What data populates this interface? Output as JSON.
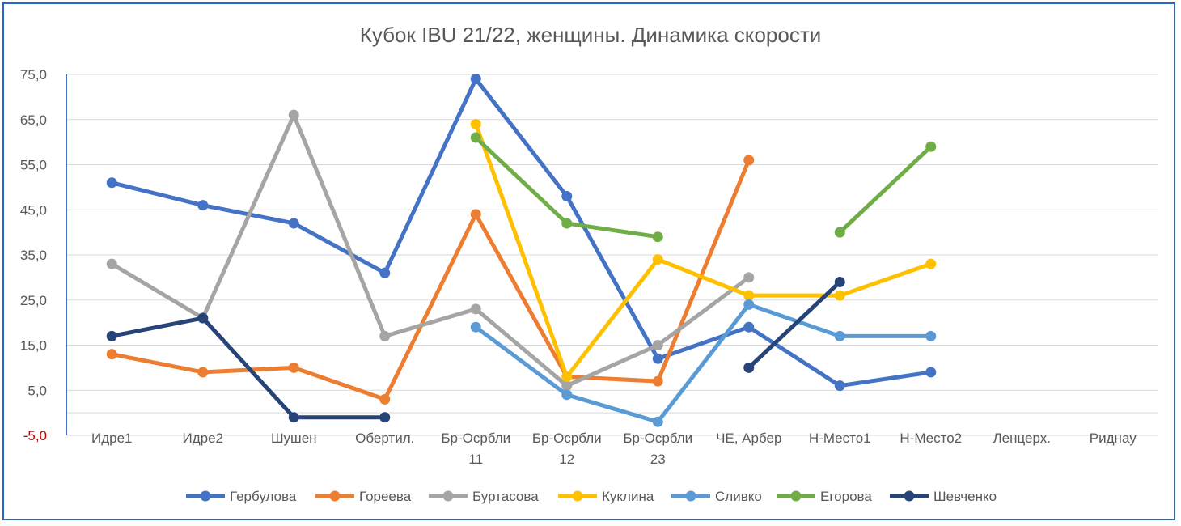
{
  "chart_data": {
    "type": "line",
    "title": "Кубок IBU 21/22, женщины. Динамика скорости",
    "xlabel": "",
    "ylabel": "",
    "ylim": [
      -5,
      75
    ],
    "yticks": [
      "75,0",
      "65,0",
      "55,0",
      "45,0",
      "35,0",
      "25,0",
      "15,0",
      "5,0",
      "-5,0"
    ],
    "grid": true,
    "legend_position": "bottom",
    "categories": [
      [
        "Идре1"
      ],
      [
        "Идре2"
      ],
      [
        "Шушен"
      ],
      [
        "Обертил."
      ],
      [
        "Бр-Осрбли",
        "11"
      ],
      [
        "Бр-Осрбли",
        "12"
      ],
      [
        "Бр-Осрбли",
        "23"
      ],
      [
        "ЧЕ, Арбер"
      ],
      [
        "Н-Место1"
      ],
      [
        "Н-Место2"
      ],
      [
        "Ленцерх."
      ],
      [
        "Риднау"
      ]
    ],
    "series": [
      {
        "name": "Гербулова",
        "color": "#4472c4",
        "values": [
          51,
          46,
          42,
          31,
          74,
          48,
          12,
          19,
          6,
          9,
          null,
          null
        ]
      },
      {
        "name": "Гореева",
        "color": "#ed7d31",
        "values": [
          13,
          9,
          10,
          3,
          44,
          8,
          7,
          56,
          null,
          null,
          null,
          null
        ]
      },
      {
        "name": "Буртасова",
        "color": "#a5a5a5",
        "values": [
          33,
          21,
          66,
          17,
          23,
          6,
          15,
          30,
          null,
          null,
          null,
          null
        ]
      },
      {
        "name": "Куклина",
        "color": "#ffc000",
        "values": [
          null,
          null,
          null,
          null,
          64,
          8,
          34,
          26,
          26,
          33,
          null,
          null
        ]
      },
      {
        "name": "Сливко",
        "color": "#5b9bd5",
        "values": [
          null,
          null,
          null,
          null,
          19,
          4,
          -2,
          24,
          17,
          17,
          null,
          null
        ]
      },
      {
        "name": "Егорова",
        "color": "#70ad47",
        "values": [
          null,
          null,
          null,
          null,
          61,
          42,
          39,
          null,
          40,
          59,
          null,
          null
        ]
      },
      {
        "name": "Шевченко",
        "color": "#264478",
        "values": [
          17,
          21,
          -1,
          -1,
          null,
          null,
          null,
          10,
          29,
          null,
          null,
          null
        ]
      }
    ]
  }
}
